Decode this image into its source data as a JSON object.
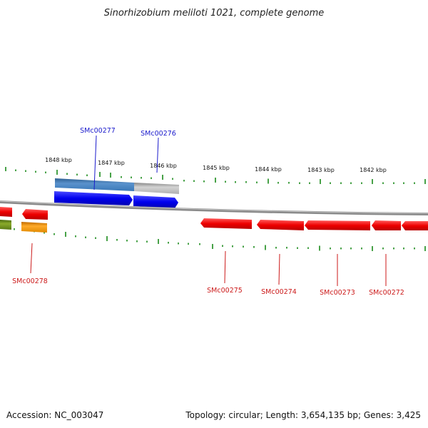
{
  "title": "Sinorhizobium meliloti 1021, complete genome",
  "footer": {
    "accession": "Accession: NC_003047",
    "topology": "Topology: circular; Length: 3,654,135 bp; Genes: 3,425"
  },
  "ticks": [
    "1848 kbp",
    "1847 kbp",
    "1846 kbp",
    "1845 kbp",
    "1844 kbp",
    "1843 kbp",
    "1842 kbp"
  ],
  "gene_labels": [
    "SMc00277",
    "SMc00276",
    "SMc00278",
    "SMc00275",
    "SMc00274",
    "SMc00273",
    "SMc00272"
  ],
  "colors": {
    "forward_gene": "#0000ee",
    "reverse_gene": "#ee0000",
    "track_blue": "#3a78b8",
    "track_gray": "#b8b8b8",
    "track_orange": "#f0920a",
    "track_olive": "#6a8a1a",
    "tick_green": "#1a8a1a",
    "backbone": "#8a8a8a"
  }
}
